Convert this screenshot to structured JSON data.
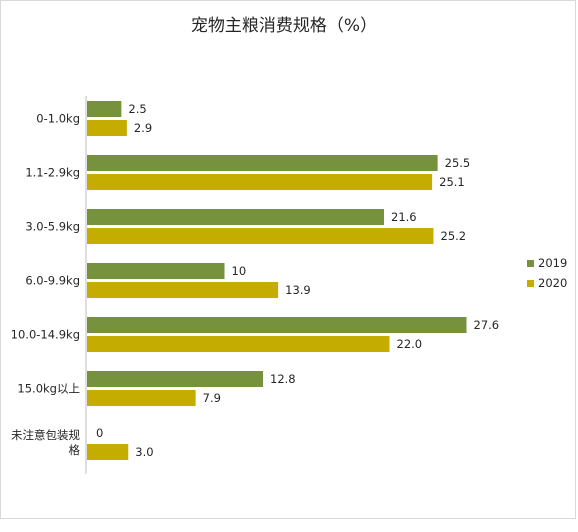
{
  "chart_data": {
    "type": "bar",
    "orientation": "horizontal",
    "title": "宠物主粮消费规格（%）",
    "categories": [
      [
        "0-1.0kg"
      ],
      [
        "1.1-2.9kg"
      ],
      [
        "3.0-5.9kg"
      ],
      [
        "6.0-9.9kg"
      ],
      [
        "10.0-14.9kg"
      ],
      [
        "15.0kg以上"
      ],
      [
        "未注意包装规",
        "格"
      ]
    ],
    "series": [
      {
        "name": "2019",
        "color": "#76923c",
        "values": [
          2.5,
          25.5,
          21.6,
          10,
          27.6,
          12.8,
          0
        ],
        "value_labels": [
          "2.5",
          "25.5",
          "21.6",
          "10",
          "27.6",
          "12.8",
          "0"
        ]
      },
      {
        "name": "2020",
        "color": "#c4ad00",
        "values": [
          2.9,
          25.1,
          25.2,
          13.9,
          22.0,
          7.9,
          3.0
        ],
        "value_labels": [
          "2.9",
          "25.1",
          "25.2",
          "13.9",
          "22.0",
          "7.9",
          "3.0"
        ]
      }
    ],
    "xlim": [
      0,
      30
    ],
    "grid": false,
    "axis_line_color": "#bfbfbf",
    "legend_position": "right"
  }
}
